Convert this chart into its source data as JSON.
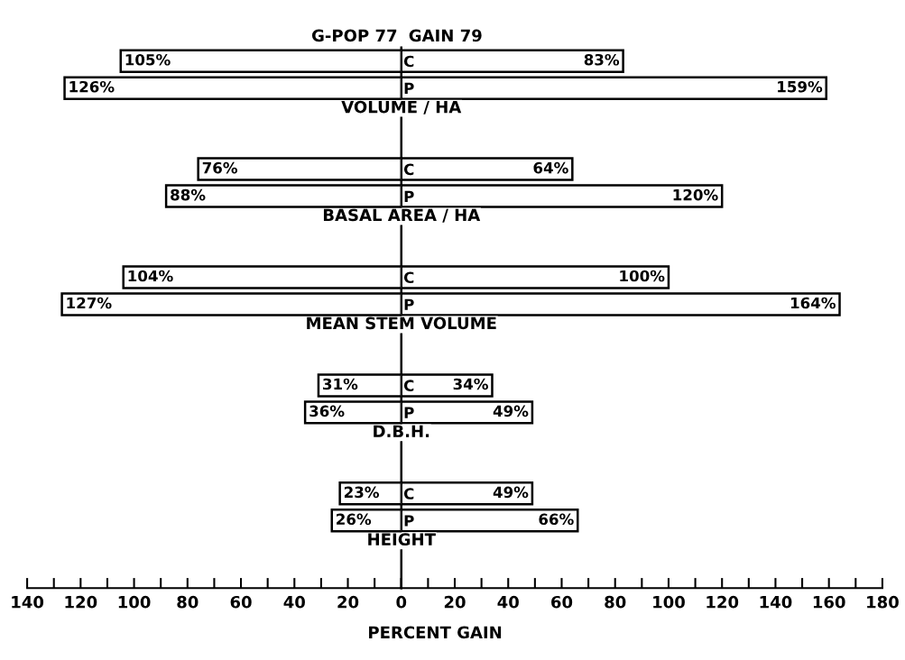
{
  "chart_data": [
    {
      "type": "bar",
      "orientation": "horizontal",
      "categories": [
        null,
        null,
        null,
        null,
        null,
        null,
        null,
        null,
        null,
        null,
        null,
        null,
        null,
        null,
        null,
        null,
        null,
        null,
        null,
        null
      ],
      "series": [
        {
          "name": "G-POP 77",
          "color": "#ffffff",
          "values": [
            105,
            126,
            null,
            null,
            76,
            88,
            null,
            null,
            104,
            127,
            null,
            null,
            31,
            36,
            null,
            null,
            23,
            26,
            null,
            null
          ]
        }
      ],
      "value_labels": [
        "105%",
        "126%",
        null,
        null,
        "76%",
        "88%",
        null,
        null,
        "104%",
        "127%",
        null,
        null,
        "31%",
        "36%",
        null,
        null,
        "23%",
        "26%",
        null,
        null
      ],
      "xlim": [
        140,
        0
      ],
      "xticks": [
        140,
        {
          "value": 130,
          "label": null
        },
        120,
        {
          "value": 110,
          "label": null
        },
        100,
        {
          "value": 90,
          "label": null
        },
        80,
        {
          "value": 70,
          "label": null
        },
        60,
        {
          "value": 50,
          "label": null
        },
        40,
        {
          "value": 30,
          "label": null
        },
        20,
        {
          "value": 10,
          "label": null
        },
        {
          "value": 0,
          "label": null
        }
      ],
      "tick_labels": "x",
      "legend": "top"
    },
    {
      "type": "bar",
      "orientation": "horizontal",
      "categories": [
        "C",
        "P",
        null,
        null,
        "C",
        "P",
        null,
        null,
        "C",
        "P",
        null,
        null,
        "C",
        "P",
        null,
        null,
        "C",
        "P",
        null,
        null
      ],
      "series": [
        {
          "name": "GAIN 79",
          "color": "#ffffff",
          "values": [
            83,
            159,
            null,
            null,
            64,
            120,
            null,
            null,
            100,
            164,
            null,
            null,
            34,
            49,
            null,
            null,
            49,
            66,
            null,
            null
          ]
        }
      ],
      "value_labels": [
        "83%",
        "159%",
        null,
        null,
        "64%",
        "120%",
        null,
        null,
        "100%",
        "164%",
        null,
        null,
        "34%",
        "49%",
        null,
        null,
        "49%",
        "66%",
        null,
        null
      ],
      "annotations": [
        "VOLUME / HA",
        "BASAL AREA / HA",
        "MEAN STEM VOLUME",
        "D.B.H.",
        "HEIGHT"
      ],
      "xlabel": "PERCENT GAIN",
      "xlim": [
        0,
        180
      ],
      "xticks": [
        0,
        {
          "value": 10,
          "label": null
        },
        20,
        {
          "value": 30,
          "label": null
        },
        40,
        {
          "value": 50,
          "label": null
        },
        60,
        {
          "value": 70,
          "label": null
        },
        80,
        {
          "value": 90,
          "label": null
        },
        100,
        {
          "value": 110,
          "label": null
        },
        120,
        {
          "value": 130,
          "label": null
        },
        140,
        {
          "value": 150,
          "label": null
        },
        160,
        {
          "value": 170,
          "label": null
        },
        180
      ],
      "legend": "top"
    }
  ]
}
